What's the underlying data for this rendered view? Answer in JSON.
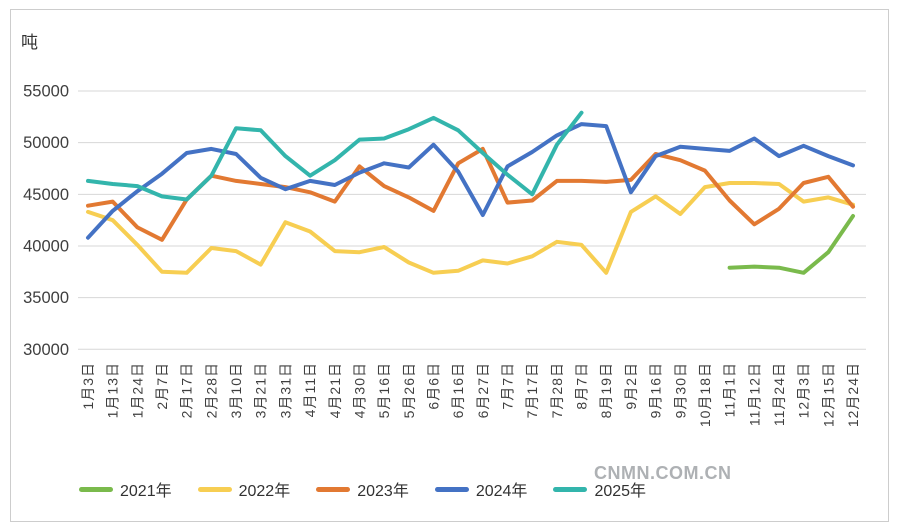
{
  "unit_label": "吨",
  "watermark": "CNMN.COM.CN",
  "chart_data": {
    "type": "line",
    "title": "",
    "xlabel": "",
    "ylabel": "吨",
    "ylim": [
      30000,
      55000
    ],
    "yticks": [
      30000,
      35000,
      40000,
      45000,
      50000,
      55000
    ],
    "grid": true,
    "legend_position": "bottom",
    "categories": [
      "1月3日",
      "1月13日",
      "1月24日",
      "2月7日",
      "2月17日",
      "2月28日",
      "3月10日",
      "3月21日",
      "3月31日",
      "4月11日",
      "4月21日",
      "4月30日",
      "5月16日",
      "5月26日",
      "6月6日",
      "6月16日",
      "6月27日",
      "7月7日",
      "7月17日",
      "7月28日",
      "8月7日",
      "8月19日",
      "9月2日",
      "9月16日",
      "9月30日",
      "10月18日",
      "11月1日",
      "11月12日",
      "11月24日",
      "12月3日",
      "12月15日",
      "12月24日"
    ],
    "series": [
      {
        "name": "2021年",
        "color": "#7ABA4C",
        "values": [
          null,
          null,
          null,
          null,
          null,
          null,
          null,
          null,
          null,
          null,
          null,
          null,
          null,
          null,
          null,
          null,
          null,
          null,
          null,
          null,
          null,
          null,
          null,
          null,
          null,
          null,
          37900,
          38000,
          37900,
          37400,
          39400,
          42900
        ]
      },
      {
        "name": "2022年",
        "color": "#F7CE52",
        "values": [
          43300,
          42500,
          40100,
          37500,
          37400,
          39800,
          39500,
          38200,
          42300,
          41400,
          39500,
          39400,
          39900,
          38400,
          37400,
          37600,
          38600,
          38300,
          39000,
          40400,
          40100,
          37400,
          43300,
          44800,
          43100,
          45700,
          46100,
          46100,
          46000,
          44300,
          44700,
          44000
        ]
      },
      {
        "name": "2023年",
        "color": "#E27932",
        "values": [
          43900,
          44300,
          41800,
          40600,
          44500,
          46800,
          46300,
          46000,
          45700,
          45200,
          44300,
          47700,
          45800,
          44700,
          43400,
          48000,
          49400,
          44200,
          44400,
          46300,
          46300,
          46200,
          46400,
          48900,
          48300,
          47300,
          44400,
          42100,
          43600,
          46100,
          46700,
          43800
        ]
      },
      {
        "name": "2024年",
        "color": "#4472C4",
        "values": [
          40800,
          43400,
          45300,
          47000,
          49000,
          49400,
          48900,
          46600,
          45500,
          46300,
          45900,
          47100,
          48000,
          47600,
          49800,
          47200,
          43000,
          47700,
          49100,
          50700,
          51800,
          51600,
          45200,
          48700,
          49600,
          49400,
          49200,
          50400,
          48700,
          49700,
          48700,
          47800
        ]
      },
      {
        "name": "2025年",
        "color": "#33B5AC",
        "values": [
          46300,
          46000,
          45800,
          44800,
          44500,
          46800,
          51400,
          51200,
          48700,
          46800,
          48300,
          50300,
          50400,
          51300,
          52400,
          51200,
          49000,
          46900,
          45000,
          49800,
          52900,
          null,
          null,
          null,
          null,
          null,
          null,
          null,
          null,
          null,
          null,
          null
        ]
      }
    ]
  }
}
